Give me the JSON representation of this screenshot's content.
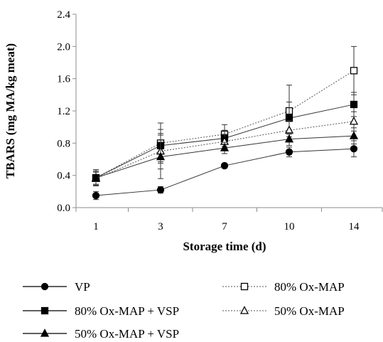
{
  "chart_data": {
    "type": "line",
    "categories": [
      "1",
      "3",
      "7",
      "10",
      "14"
    ],
    "xlabel": "Storage time (d)",
    "ylabel": "TBARS (mg MA/kg meat)",
    "ylim": [
      0,
      2.4
    ],
    "yticks": [
      "0.0",
      "0.4",
      "0.8",
      "1.2",
      "1.6",
      "2.0",
      "2.4"
    ],
    "grid": false,
    "legend_position": "bottom",
    "series": [
      {
        "name": "VP",
        "marker": "circle",
        "filled": true,
        "dashed": false,
        "values": [
          0.15,
          0.22,
          0.52,
          0.69,
          0.73
        ],
        "errors": [
          0.05,
          0.04,
          0.03,
          0.06,
          0.1
        ]
      },
      {
        "name": "80% Ox-MAP",
        "marker": "square",
        "filled": false,
        "dashed": true,
        "values": [
          0.37,
          0.8,
          0.91,
          1.2,
          1.7
        ],
        "errors": [
          0.1,
          0.25,
          0.12,
          0.32,
          0.3
        ]
      },
      {
        "name": "80% Ox-MAP + VSP",
        "marker": "square",
        "filled": true,
        "dashed": false,
        "values": [
          0.37,
          0.77,
          0.86,
          1.11,
          1.28
        ],
        "errors": [
          0.1,
          0.2,
          0.1,
          0.2,
          0.15
        ]
      },
      {
        "name": "50% Ox-MAP",
        "marker": "triangle",
        "filled": false,
        "dashed": true,
        "values": [
          0.36,
          0.7,
          0.82,
          0.96,
          1.07
        ],
        "errors": [
          0.08,
          0.22,
          0.09,
          0.12,
          0.12
        ]
      },
      {
        "name": "50% Ox-MAP + VSP",
        "marker": "triangle",
        "filled": true,
        "dashed": false,
        "values": [
          0.37,
          0.63,
          0.74,
          0.85,
          0.89
        ],
        "errors": [
          0.08,
          0.27,
          0.07,
          0.08,
          0.1
        ]
      }
    ]
  }
}
